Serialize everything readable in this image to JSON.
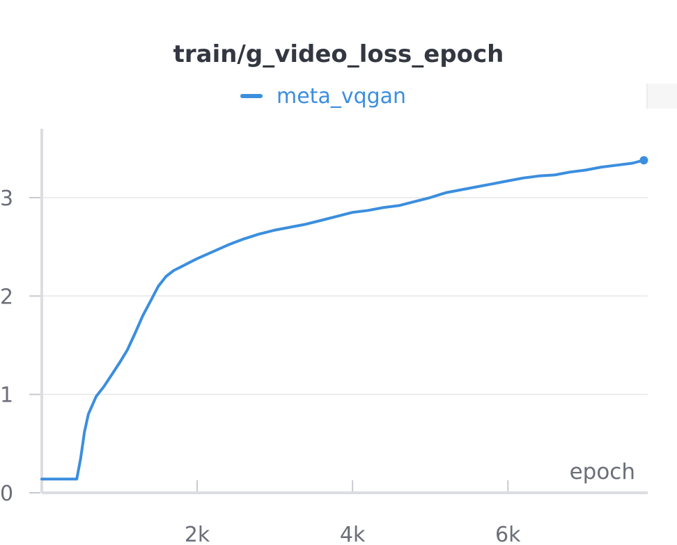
{
  "chart_data": {
    "type": "line",
    "title": "train/g_video_loss_epoch",
    "xlabel": "epoch",
    "ylabel": "",
    "xlim": [
      0,
      7800
    ],
    "ylim": [
      0,
      3.7
    ],
    "x_ticks": [
      2000,
      4000,
      6000
    ],
    "x_tick_labels": [
      "2k",
      "4k",
      "6k"
    ],
    "y_ticks": [
      0,
      1,
      2,
      3
    ],
    "y_tick_labels": [
      "0",
      "1",
      "2",
      "3"
    ],
    "grid": true,
    "legend_position": "top-center",
    "series": [
      {
        "name": "meta_vqgan",
        "color": "#3b8ede",
        "x": [
          0,
          100,
          200,
          300,
          400,
          450,
          500,
          550,
          600,
          700,
          800,
          900,
          1000,
          1100,
          1200,
          1300,
          1400,
          1500,
          1600,
          1700,
          1800,
          1900,
          2000,
          2200,
          2400,
          2600,
          2800,
          3000,
          3200,
          3400,
          3600,
          3800,
          4000,
          4200,
          4400,
          4600,
          4800,
          5000,
          5200,
          5400,
          5600,
          5800,
          6000,
          6200,
          6400,
          6600,
          6800,
          7000,
          7200,
          7400,
          7600,
          7750
        ],
        "values": [
          0.14,
          0.14,
          0.14,
          0.14,
          0.14,
          0.14,
          0.35,
          0.62,
          0.8,
          0.98,
          1.08,
          1.2,
          1.32,
          1.45,
          1.62,
          1.8,
          1.95,
          2.1,
          2.2,
          2.26,
          2.3,
          2.34,
          2.38,
          2.45,
          2.52,
          2.58,
          2.63,
          2.67,
          2.7,
          2.73,
          2.77,
          2.81,
          2.85,
          2.87,
          2.9,
          2.92,
          2.96,
          3.0,
          3.05,
          3.08,
          3.11,
          3.14,
          3.17,
          3.2,
          3.22,
          3.23,
          3.26,
          3.28,
          3.31,
          3.33,
          3.35,
          3.38
        ]
      }
    ]
  }
}
